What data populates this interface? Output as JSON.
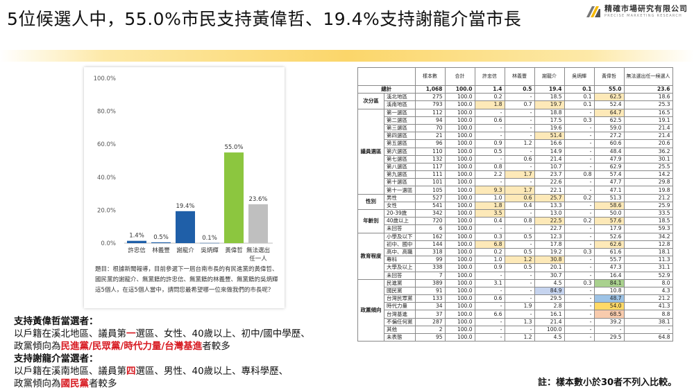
{
  "title": "5位候選人中，55.0%市民支持黃偉哲、19.4%支持謝龍介當市長",
  "logo": {
    "cn": "精確市場研究有限公司",
    "en": "PRECISE MARKETING RESEARCH",
    "icon": "logo-stripes-icon"
  },
  "colors": {
    "yellow": "#fde9b8",
    "lightblue": "#c6d4ef",
    "blue": "#9dc3e6",
    "gold": "#ffd966",
    "green": "#a9d18e",
    "peach": "#f8cbad",
    "bar_blue": "#1f5fa8",
    "bar_green": "#8cc63f",
    "bar_gray": "#bfbfbf",
    "bar_default": "#1f5fa8"
  },
  "chart_data": {
    "type": "bar",
    "categories": [
      "許忠信",
      "林義豐",
      "謝龍介",
      "吳炳輝",
      "黃偉哲",
      "無法選出任一人"
    ],
    "values": [
      1.4,
      0.5,
      19.4,
      0.1,
      55.0,
      23.6
    ],
    "labels": [
      "1.4%",
      "0.5%",
      "19.4%",
      "0.1%",
      "55.0%",
      "23.6%"
    ],
    "bar_colors": [
      "#1f5fa8",
      "#1f5fa8",
      "#1f5fa8",
      "#1f5fa8",
      "#8cc63f",
      "#bfbfbf"
    ],
    "ylim": [
      0,
      100
    ],
    "yticks": [
      "0.0%",
      "20.0%",
      "40.0%",
      "60.0%",
      "80.0%",
      "100.0%"
    ],
    "grid": false
  },
  "question": "題目：根據新聞報導，目前參選下一屆台南市長的有民進黨的黃偉哲、國民黨的謝龍介、無黨籍的許忠信、無黨籍的林義豐、無黨籍的吳炳輝這5個人，在這5個人當中，請問您最希望哪一位來做我們的市長呢？",
  "summary": {
    "h1": "支持黃偉哲當選者：",
    "l1a": "以戶籍在溪北地區、議員第",
    "l1b": "一",
    "l1c": "選區、女性、40歲以上、初中/國中學歷、",
    "l2a": "政黨傾向為",
    "l2b": "民進黨/民眾黨/時代力量/台灣基進",
    "l2c": "者較多",
    "h2": "支持謝龍介當選者：",
    "l3a": "以戶籍在溪南地區、議員第",
    "l3b": "四",
    "l3c": "選區、男性、40歲以上、專科學歷、",
    "l4a": "政黨傾向為",
    "l4b": "國民黨",
    "l4c": "者較多"
  },
  "table": {
    "headers": [
      "樣本數",
      "合計",
      "許忠信",
      "林義豐",
      "謝龍介",
      "吳炳輝",
      "黃偉哲",
      "無法選出任一候選人"
    ],
    "total": {
      "label": "總計",
      "cells": [
        "1,068",
        "100.0",
        "1.4",
        "0.5",
        "19.4",
        "0.1",
        "55.0",
        "23.6"
      ]
    },
    "groups": [
      {
        "label": "次分區",
        "rows": [
          {
            "label": "溪北地區",
            "cells": [
              "275",
              "100.0",
              "0.2",
              "-",
              "18.5",
              "0.1",
              "62.5",
              "18.6"
            ],
            "hl": {
              "6": "yellow"
            }
          },
          {
            "label": "溪南地區",
            "cells": [
              "793",
              "100.0",
              "1.8",
              "0.7",
              "19.7",
              "0.1",
              "52.4",
              "25.3"
            ],
            "hl": {
              "2": "yellow",
              "4": "yellow"
            }
          }
        ]
      },
      {
        "label": "議員選區",
        "rows": [
          {
            "label": "第一選區",
            "cells": [
              "112",
              "100.0",
              "-",
              "-",
              "18.8",
              "-",
              "64.7",
              "16.5"
            ],
            "hl": {
              "6": "yellow"
            }
          },
          {
            "label": "第二選區",
            "cells": [
              "94",
              "100.0",
              "0.6",
              "-",
              "17.5",
              "0.3",
              "62.5",
              "19.1"
            ]
          },
          {
            "label": "第三選區",
            "cells": [
              "70",
              "100.0",
              "-",
              "-",
              "19.6",
              "-",
              "59.0",
              "21.4"
            ]
          },
          {
            "label": "第四選區",
            "cells": [
              "21",
              "100.0",
              "-",
              "-",
              "51.4",
              "-",
              "27.2",
              "21.4"
            ],
            "hl": {
              "4": "yellow"
            }
          },
          {
            "label": "第五選區",
            "cells": [
              "96",
              "100.0",
              "0.9",
              "1.2",
              "16.6",
              "-",
              "60.6",
              "20.6"
            ]
          },
          {
            "label": "第六選區",
            "cells": [
              "110",
              "100.0",
              "0.5",
              "-",
              "14.9",
              "-",
              "48.4",
              "36.2"
            ]
          },
          {
            "label": "第七選區",
            "cells": [
              "132",
              "100.0",
              "-",
              "0.6",
              "21.4",
              "-",
              "47.9",
              "30.1"
            ]
          },
          {
            "label": "第八選區",
            "cells": [
              "117",
              "100.0",
              "0.8",
              "-",
              "10.7",
              "-",
              "62.9",
              "25.5"
            ]
          },
          {
            "label": "第九選區",
            "cells": [
              "111",
              "100.0",
              "2.2",
              "1.7",
              "23.7",
              "0.8",
              "57.4",
              "14.2"
            ],
            "hl": {
              "3": "yellow"
            }
          },
          {
            "label": "第十選區",
            "cells": [
              "101",
              "100.0",
              "-",
              "-",
              "22.6",
              "-",
              "47.7",
              "29.8"
            ]
          },
          {
            "label": "第十一選區",
            "cells": [
              "105",
              "100.0",
              "9.3",
              "1.7",
              "22.1",
              "-",
              "47.1",
              "19.8"
            ],
            "hl": {
              "2": "yellow",
              "3": "yellow"
            }
          }
        ]
      },
      {
        "label": "性別",
        "rows": [
          {
            "label": "男性",
            "cells": [
              "527",
              "100.0",
              "1.0",
              "0.6",
              "25.7",
              "0.2",
              "51.3",
              "21.2"
            ],
            "hl": {
              "3": "yellow",
              "4": "yellow"
            }
          },
          {
            "label": "女性",
            "cells": [
              "541",
              "100.0",
              "1.8",
              "0.4",
              "13.3",
              "-",
              "58.6",
              "25.9"
            ],
            "hl": {
              "2": "yellow",
              "6": "yellow"
            }
          }
        ]
      },
      {
        "label": "年齡別",
        "rows": [
          {
            "label": "20-39歲",
            "cells": [
              "342",
              "100.0",
              "3.5",
              "-",
              "13.0",
              "-",
              "50.0",
              "33.5"
            ],
            "hl": {
              "2": "yellow"
            }
          },
          {
            "label": "40歲以上",
            "cells": [
              "720",
              "100.0",
              "0.4",
              "0.8",
              "22.5",
              "0.2",
              "57.6",
              "18.5"
            ],
            "hl": {
              "4": "yellow",
              "6": "yellow"
            }
          },
          {
            "label": "未回答",
            "cells": [
              "6",
              "100.0",
              "-",
              "-",
              "22.7",
              "-",
              "17.9",
              "59.3"
            ]
          }
        ]
      },
      {
        "label": "教育程度",
        "rows": [
          {
            "label": "小學及以下",
            "cells": [
              "162",
              "100.0",
              "0.3",
              "0.5",
              "12.3",
              "-",
              "52.6",
              "34.2"
            ]
          },
          {
            "label": "初中、國中",
            "cells": [
              "144",
              "100.0",
              "6.8",
              "-",
              "17.8",
              "-",
              "62.6",
              "12.8"
            ],
            "hl": {
              "2": "yellow",
              "6": "yellow"
            }
          },
          {
            "label": "高中、高職",
            "cells": [
              "318",
              "100.0",
              "0.2",
              "0.5",
              "19.2",
              "0.3",
              "61.6",
              "18.1"
            ]
          },
          {
            "label": "專科",
            "cells": [
              "99",
              "100.0",
              "1.0",
              "1.2",
              "30.8",
              "-",
              "55.7",
              "11.3"
            ],
            "hl": {
              "3": "yellow",
              "4": "yellow"
            }
          },
          {
            "label": "大學及以上",
            "cells": [
              "338",
              "100.0",
              "0.9",
              "0.5",
              "20.1",
              "-",
              "47.3",
              "31.1"
            ]
          },
          {
            "label": "未回答",
            "cells": [
              "7",
              "100.0",
              "-",
              "-",
              "30.7",
              "-",
              "16.4",
              "52.9"
            ]
          }
        ]
      },
      {
        "label": "政黨傾向",
        "rows": [
          {
            "label": "民進黨",
            "cells": [
              "389",
              "100.0",
              "3.1",
              "-",
              "4.5",
              "0.3",
              "84.1",
              "8.0"
            ],
            "hl": {
              "6": "green"
            }
          },
          {
            "label": "國民黨",
            "cells": [
              "91",
              "100.0",
              "-",
              "-",
              "84.9",
              "-",
              "10.8",
              "4.3"
            ],
            "hl": {
              "4": "lightblue"
            }
          },
          {
            "label": "台灣民眾黨",
            "cells": [
              "133",
              "100.0",
              "0.6",
              "-",
              "29.5",
              "-",
              "48.7",
              "21.2"
            ],
            "hl": {
              "6": "blue"
            }
          },
          {
            "label": "時代力量",
            "cells": [
              "34",
              "100.0",
              "-",
              "1.9",
              "2.8",
              "-",
              "54.0",
              "41.3"
            ],
            "hl": {
              "6": "gold"
            }
          },
          {
            "label": "台灣基進",
            "cells": [
              "37",
              "100.0",
              "6.6",
              "-",
              "16.1",
              "-",
              "68.5",
              "8.8"
            ],
            "hl": {
              "6": "peach"
            }
          },
          {
            "label": "不偏任何黨",
            "cells": [
              "287",
              "100.0",
              "-",
              "1.3",
              "21.4",
              "-",
              "39.2",
              "38.1"
            ]
          },
          {
            "label": "其他",
            "cells": [
              "2",
              "100.0",
              "-",
              "-",
              "100.0",
              "-",
              "-",
              "-"
            ]
          },
          {
            "label": "未表態",
            "cells": [
              "95",
              "100.0",
              "-",
              "1.2",
              "4.5",
              "-",
              "29.5",
              "64.8"
            ]
          }
        ]
      }
    ]
  },
  "note": "註：樣本數小於30者不列入比較。"
}
